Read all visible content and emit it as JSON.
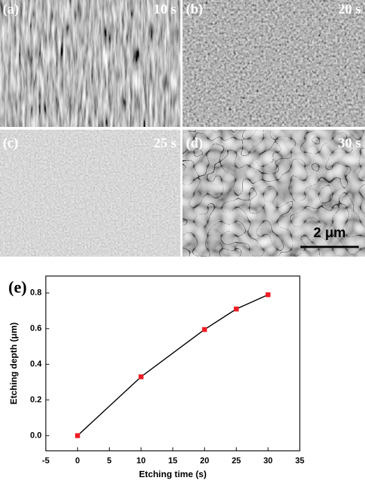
{
  "panels": [
    {
      "label": "(a)",
      "time": "10 s"
    },
    {
      "label": "(b)",
      "time": "20 s"
    },
    {
      "label": "(c)",
      "time": "25 s"
    },
    {
      "label": "(d)",
      "time": "30 s"
    }
  ],
  "scale_bar": "2 μm",
  "chart_data": {
    "type": "line",
    "panel_label": "(e)",
    "x_label": "Etching time (s)",
    "y_label": "Etching depth (μm)",
    "x": [
      0,
      10,
      20,
      25,
      30
    ],
    "values": [
      0,
      0.33,
      0.595,
      0.71,
      0.79
    ],
    "color": "#000000",
    "marker_color": "#ee1c24",
    "xlim": [
      -5,
      35
    ],
    "xticks": [
      -5,
      0,
      5,
      10,
      15,
      20,
      25,
      30,
      35
    ],
    "ylim": [
      -0.085,
      0.895
    ],
    "yticks": [
      {
        "value": 0,
        "label": "0.0"
      },
      0.2,
      0.4,
      0.6,
      0.8
    ]
  }
}
